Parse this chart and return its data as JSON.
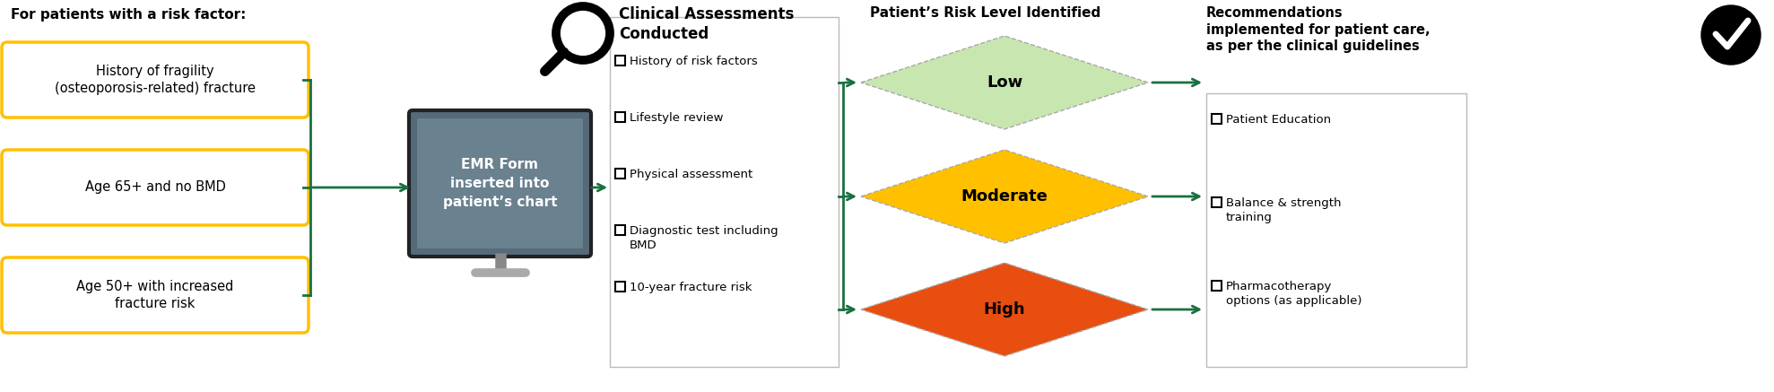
{
  "bg_color": "#ffffff",
  "header_text": "For patients with a risk factor:",
  "boxes": [
    "History of fragility\n(osteoporosis-related) fracture",
    "Age 65+ and no BMD",
    "Age 50+ with increased\nfracture risk"
  ],
  "box_border_color": "#FFC000",
  "box_fill_color": "#ffffff",
  "bracket_color": "#1a7040",
  "emr_box_color": "#556b7a",
  "emr_inner_color": "#6a818f",
  "emr_text": "EMR Form\ninserted into\npatient’s chart",
  "emr_text_color": "#ffffff",
  "arrow_color": "#1a7040",
  "checklist_title": "Clinical Assessments\nConducted",
  "checklist_items": [
    "History of risk factors",
    "Lifestyle review",
    "Physical assessment",
    "Diagnostic test including\nBMD",
    "10-year fracture risk"
  ],
  "risk_header": "Patient’s Risk Level Identified",
  "risk_levels": [
    "Low",
    "Moderate",
    "High"
  ],
  "risk_colors": [
    "#c8e6b0",
    "#FFC000",
    "#e84e10"
  ],
  "reco_title": "Recommendations\nimplemented for patient care,\nas per the clinical guidelines",
  "reco_items": [
    "Patient Education",
    "Balance & strength\ntraining",
    "Pharmacotherapy\noptions (as applicable)"
  ]
}
